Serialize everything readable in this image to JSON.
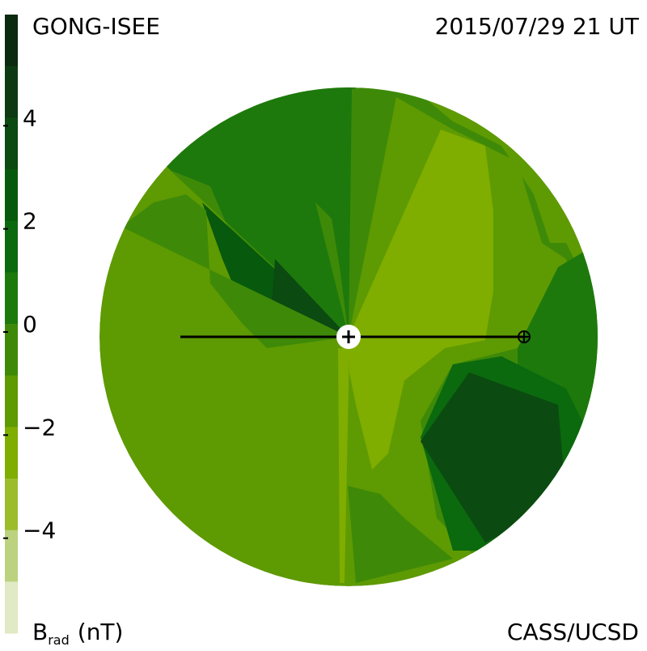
{
  "header": {
    "source": "GONG-ISEE",
    "datetime": "2015/07/29 21 UT"
  },
  "footer": {
    "credit": "CASS/UCSD"
  },
  "colorbar": {
    "lim": [
      -6,
      6
    ],
    "ticks": [
      {
        "value": 4,
        "label": "4"
      },
      {
        "value": 2,
        "label": "2"
      },
      {
        "value": 0,
        "label": "0"
      },
      {
        "value": -2,
        "label": "−2"
      },
      {
        "value": -4,
        "label": "−4"
      }
    ],
    "colors": [
      "#0c2a10",
      "#0d3a12",
      "#0b4a10",
      "#07590d",
      "#0b690e",
      "#1d790c",
      "#3e8a08",
      "#5e9a02",
      "#7fad00",
      "#9cbc2c",
      "#bcd27e",
      "#e0eac4"
    ],
    "label": {
      "symbol": "B",
      "subscript": "rad",
      "unit": "(nT)"
    }
  }
}
